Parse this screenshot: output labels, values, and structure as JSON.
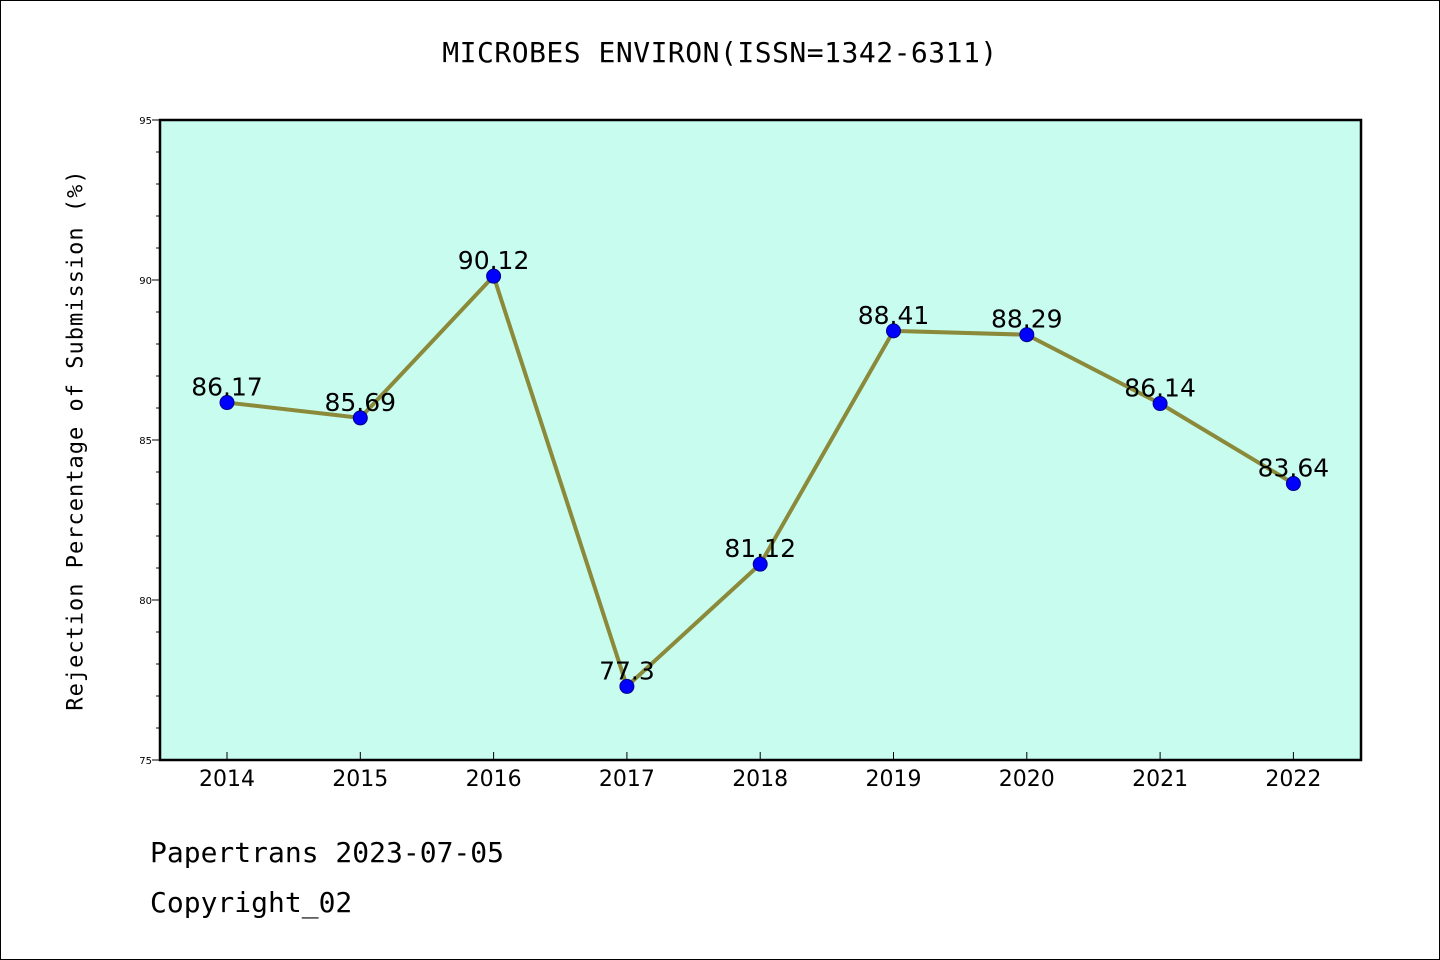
{
  "chart_data": {
    "type": "line",
    "title": "MICROBES ENVIRON(ISSN=1342-6311)",
    "xlabel": "",
    "ylabel": "Rejection Percentage of Submission (%)",
    "x": [
      "2014",
      "2015",
      "2016",
      "2017",
      "2018",
      "2019",
      "2020",
      "2021",
      "2022"
    ],
    "series": [
      {
        "values": [
          86.17,
          85.69,
          90.12,
          77.3,
          81.12,
          88.41,
          88.29,
          86.14,
          83.64
        ]
      }
    ],
    "data_labels": [
      "86.17",
      "85.69",
      "90.12",
      "77.3",
      "81.12",
      "88.41",
      "88.29",
      "86.14",
      "83.64"
    ],
    "ylim": [
      75,
      95
    ],
    "yticks": [
      75,
      80,
      85,
      90,
      95
    ],
    "grid": false,
    "colors": {
      "plot_bg": "#c8fcef",
      "line": "#8b8a3a",
      "marker": "#0000ff"
    }
  },
  "footer": {
    "line1": "Papertrans 2023-07-05",
    "line2": "Copyright_02"
  }
}
